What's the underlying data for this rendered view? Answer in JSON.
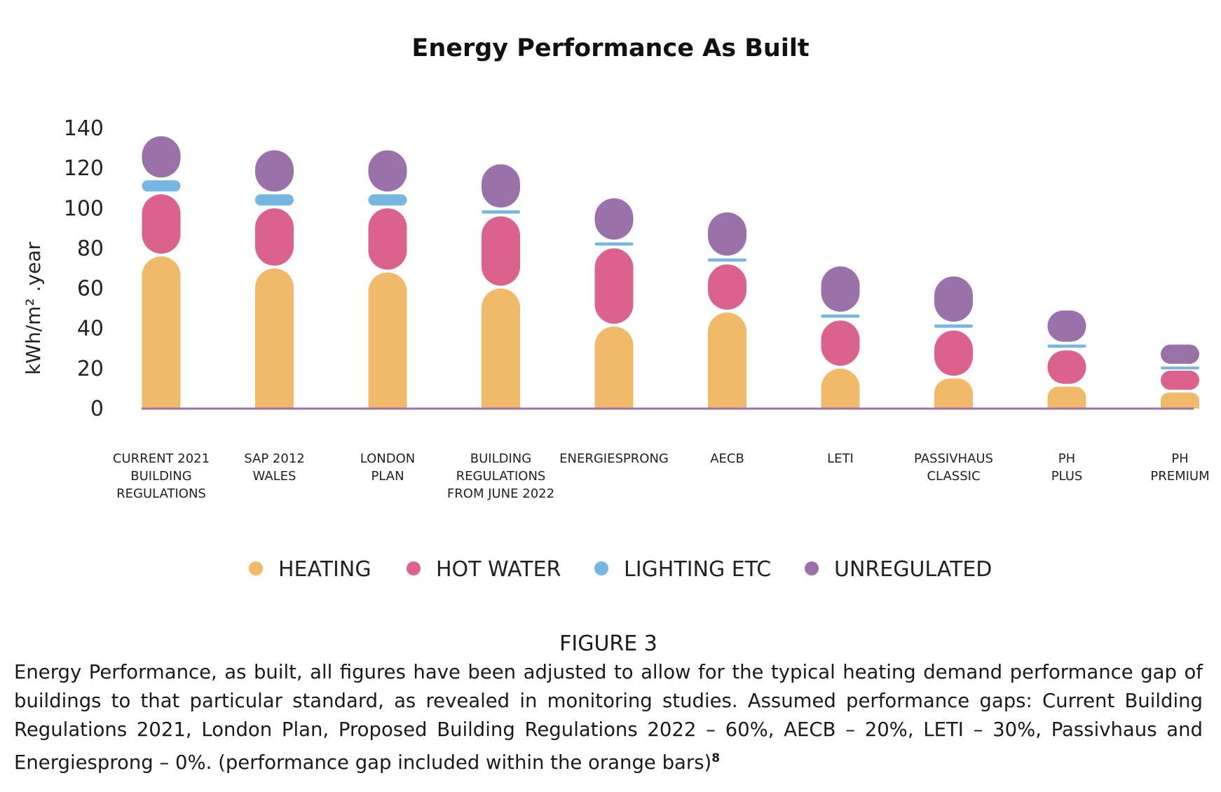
{
  "chart_data": {
    "type": "bar",
    "stacked": true,
    "title": "Energy Performance As Built",
    "ylabel": "kWh/m² .year",
    "xlabel": "",
    "ylim": [
      0,
      140
    ],
    "yticks": [
      "0",
      "20",
      "40",
      "60",
      "80",
      "100",
      "120",
      "140"
    ],
    "grid": false,
    "legend_position": "bottom",
    "categories": [
      [
        "CURRENT 2021",
        "BUILDING",
        "REGULATIONS"
      ],
      [
        "SAP 2012",
        "WALES"
      ],
      [
        "LONDON",
        "PLAN"
      ],
      [
        "BUILDING",
        "REGULATIONS",
        "FROM JUNE 2022"
      ],
      [
        "ENERGIESPRONG"
      ],
      [
        "AECB"
      ],
      [
        "LETI"
      ],
      [
        "PASSIVHAUS",
        "CLASSIC"
      ],
      [
        "PH",
        "PLUS"
      ],
      [
        "PH",
        "PREMIUM"
      ]
    ],
    "series": [
      {
        "name": "HEATING",
        "color": "#F0BA68",
        "values": [
          76,
          70,
          68,
          60,
          41,
          48,
          20,
          15,
          11,
          8
        ]
      },
      {
        "name": "HOT WATER",
        "color": "#DC628E",
        "values": [
          31,
          30,
          32,
          36,
          39,
          24,
          24,
          24,
          18,
          11
        ]
      },
      {
        "name": "LIGHTING ETC",
        "color": "#76B6E2",
        "values": [
          7,
          7,
          7,
          3,
          3,
          3,
          3,
          3,
          3,
          2
        ]
      },
      {
        "name": "UNREGULATED",
        "color": "#9B71AA",
        "values": [
          22,
          22,
          22,
          23,
          22,
          23,
          24,
          24,
          17,
          11
        ]
      }
    ]
  },
  "caption": {
    "figure_label": "FIGURE 3",
    "text": "Energy Performance, as built, all figures have been adjusted to allow for the typical heating demand performance gap of buildings to that particular standard, as revealed in monitoring studies. Assumed performance gaps: Current Building Regulations 2021, London Plan, Proposed Building Regulations 2022 – 60%, AECB – 20%, LETI – 30%, Passivhaus and Energiesprong – 0%. (performance gap included within the orange bars)",
    "footnote": "8"
  },
  "colors": {
    "axis_line": "#9B71AA"
  }
}
